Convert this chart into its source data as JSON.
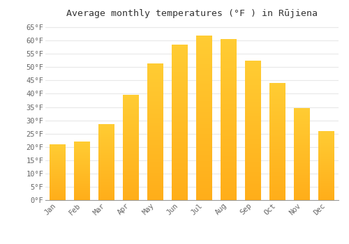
{
  "title": "Average monthly temperatures (°F ) in Rūjiena",
  "months": [
    "Jan",
    "Feb",
    "Mar",
    "Apr",
    "May",
    "Jun",
    "Jul",
    "Aug",
    "Sep",
    "Oct",
    "Nov",
    "Dec"
  ],
  "values": [
    21,
    22,
    28.5,
    39.5,
    51.5,
    58.5,
    62,
    60.5,
    52.5,
    44,
    34.5,
    26
  ],
  "ylim": [
    0,
    67
  ],
  "yticks": [
    0,
    5,
    10,
    15,
    20,
    25,
    30,
    35,
    40,
    45,
    50,
    55,
    60,
    65
  ],
  "bar_color": "#FFC04D",
  "bar_edge_color": "#FFB300",
  "background_color": "#FFFFFF",
  "plot_bg_color": "#FFFFFF",
  "grid_color": "#E8E8E8",
  "text_color": "#666666",
  "title_color": "#333333",
  "title_fontsize": 9.5,
  "tick_fontsize": 7.5,
  "bar_width": 0.65
}
